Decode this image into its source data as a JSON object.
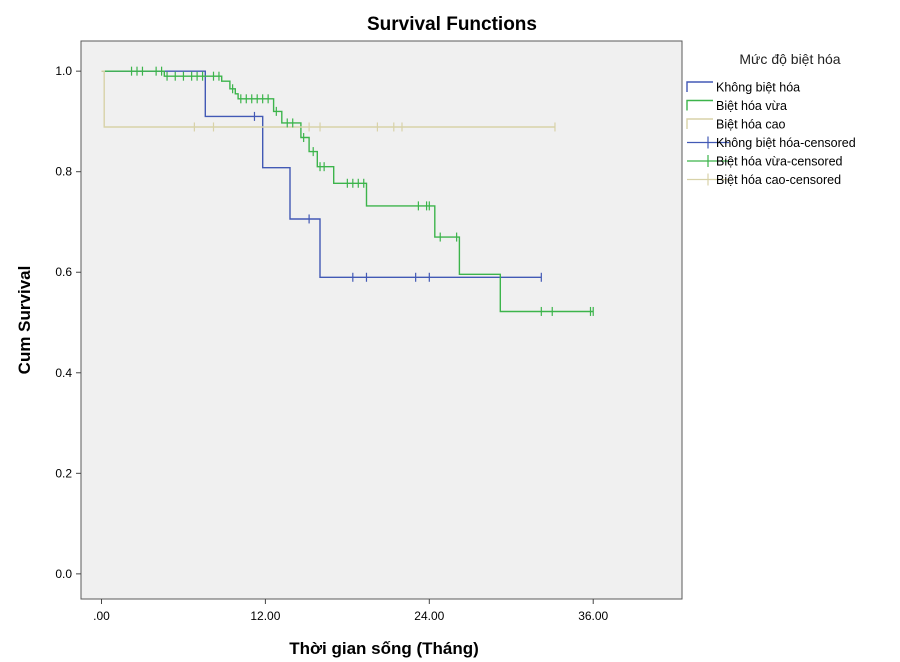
{
  "chart_data": {
    "type": "line",
    "title": "Survival Functions",
    "xlabel": "Thời gian sống (Tháng)",
    "ylabel": "Cum Survival",
    "xlim": [
      -1.5,
      42.5
    ],
    "ylim": [
      -0.05,
      1.06
    ],
    "xticks": [
      0,
      12,
      24,
      36
    ],
    "xtick_labels": [
      ".00",
      "12.00",
      "24.00",
      "36.00"
    ],
    "yticks": [
      0.0,
      0.2,
      0.4,
      0.6,
      0.8,
      1.0
    ],
    "ytick_labels": [
      "0.0",
      "0.2",
      "0.4",
      "0.6",
      "0.8",
      "1.0"
    ],
    "grid": false,
    "legend_position": "top-right",
    "legend_title": "Mức độ biệt hóa",
    "plot_background": "#f0f0f0",
    "legend": [
      {
        "label": "Không biệt hóa",
        "color": "#4259b5",
        "marker": "line"
      },
      {
        "label": "Biệt hóa vừa",
        "color": "#3cb44b",
        "marker": "line"
      },
      {
        "label": "Biệt hóa cao",
        "color": "#d8d2a8",
        "marker": "line"
      },
      {
        "label": "Không biệt hóa-censored",
        "color": "#4259b5",
        "marker": "cross"
      },
      {
        "label": "Biệt hóa vừa-censored",
        "color": "#3cb44b",
        "marker": "cross"
      },
      {
        "label": "Biệt hóa cao-censored",
        "color": "#d8d2a8",
        "marker": "cross"
      }
    ],
    "series": [
      {
        "name": "Không biệt hóa",
        "color": "#4259b5",
        "steps": [
          [
            0,
            1.0
          ],
          [
            7.6,
            0.91
          ],
          [
            11.8,
            0.808
          ],
          [
            13.8,
            0.706
          ],
          [
            16.0,
            0.59
          ],
          [
            32.2,
            0.59
          ]
        ],
        "censored": [
          [
            11.2,
            0.91
          ],
          [
            15.2,
            0.706
          ],
          [
            18.4,
            0.59
          ],
          [
            19.4,
            0.59
          ],
          [
            23.0,
            0.59
          ],
          [
            24.0,
            0.59
          ],
          [
            32.2,
            0.59
          ]
        ]
      },
      {
        "name": "Biệt hóa vừa",
        "color": "#3cb44b",
        "steps": [
          [
            0,
            1.0
          ],
          [
            4.6,
            0.99
          ],
          [
            8.8,
            0.98
          ],
          [
            9.4,
            0.965
          ],
          [
            9.8,
            0.955
          ],
          [
            10.0,
            0.945
          ],
          [
            12.6,
            0.92
          ],
          [
            13.2,
            0.897
          ],
          [
            14.6,
            0.868
          ],
          [
            15.2,
            0.84
          ],
          [
            15.8,
            0.81
          ],
          [
            17.0,
            0.777
          ],
          [
            19.4,
            0.732
          ],
          [
            24.4,
            0.67
          ],
          [
            26.2,
            0.596
          ],
          [
            29.2,
            0.522
          ],
          [
            36.0,
            0.522
          ]
        ],
        "censored": [
          [
            2.2,
            1.0
          ],
          [
            2.6,
            1.0
          ],
          [
            3.0,
            1.0
          ],
          [
            4.0,
            1.0
          ],
          [
            4.4,
            1.0
          ],
          [
            4.8,
            0.99
          ],
          [
            5.4,
            0.99
          ],
          [
            6.0,
            0.99
          ],
          [
            6.6,
            0.99
          ],
          [
            7.0,
            0.99
          ],
          [
            7.4,
            0.99
          ],
          [
            8.2,
            0.99
          ],
          [
            8.6,
            0.99
          ],
          [
            9.6,
            0.965
          ],
          [
            10.2,
            0.945
          ],
          [
            10.6,
            0.945
          ],
          [
            11.0,
            0.945
          ],
          [
            11.4,
            0.945
          ],
          [
            11.8,
            0.945
          ],
          [
            12.2,
            0.945
          ],
          [
            12.8,
            0.92
          ],
          [
            13.6,
            0.897
          ],
          [
            14.0,
            0.897
          ],
          [
            14.8,
            0.868
          ],
          [
            15.5,
            0.84
          ],
          [
            16.0,
            0.81
          ],
          [
            16.3,
            0.81
          ],
          [
            18.0,
            0.777
          ],
          [
            18.4,
            0.777
          ],
          [
            18.8,
            0.777
          ],
          [
            19.2,
            0.777
          ],
          [
            23.2,
            0.732
          ],
          [
            23.8,
            0.732
          ],
          [
            24.0,
            0.732
          ],
          [
            24.8,
            0.67
          ],
          [
            26.0,
            0.67
          ],
          [
            32.2,
            0.522
          ],
          [
            33.0,
            0.522
          ],
          [
            35.8,
            0.522
          ],
          [
            36.0,
            0.522
          ]
        ]
      },
      {
        "name": "Biệt hóa cao",
        "color": "#d8d2a8",
        "steps": [
          [
            0,
            1.0
          ],
          [
            0.2,
            0.889
          ],
          [
            33.2,
            0.889
          ]
        ],
        "censored": [
          [
            6.8,
            0.889
          ],
          [
            8.2,
            0.889
          ],
          [
            15.2,
            0.889
          ],
          [
            16.0,
            0.889
          ],
          [
            20.2,
            0.889
          ],
          [
            21.4,
            0.889
          ],
          [
            22.0,
            0.889
          ],
          [
            33.2,
            0.889
          ]
        ]
      }
    ]
  }
}
